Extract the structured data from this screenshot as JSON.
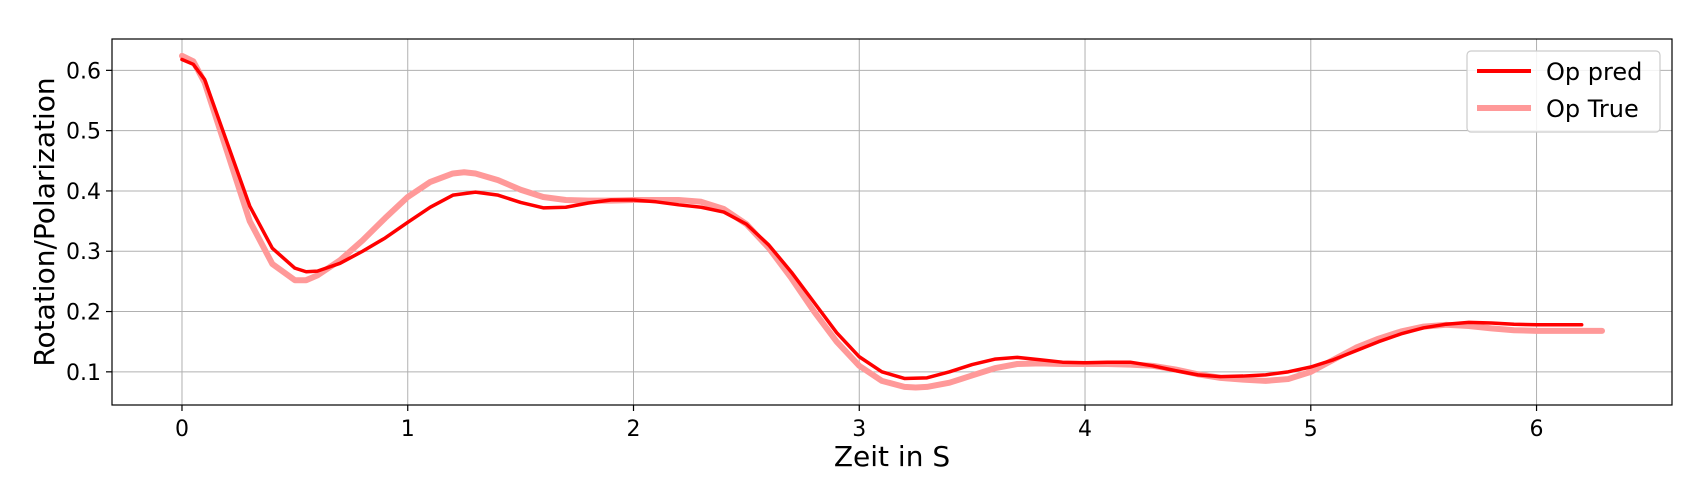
{
  "chart_data": {
    "type": "line",
    "title": "",
    "xlabel": "Zeit in S",
    "ylabel": "Rotation/Polarization",
    "xlim": [
      -0.31,
      6.6
    ],
    "ylim": [
      0.045,
      0.652
    ],
    "xticks": [
      0,
      1,
      2,
      3,
      4,
      5,
      6
    ],
    "yticks": [
      0.1,
      0.2,
      0.3,
      0.4,
      0.5,
      0.6
    ],
    "grid": true,
    "legend_position": "top-right",
    "series": [
      {
        "name": "Op pred",
        "color": "#ff0000",
        "x": [
          0,
          0.05,
          0.1,
          0.2,
          0.3,
          0.4,
          0.5,
          0.55,
          0.6,
          0.7,
          0.8,
          0.9,
          1.0,
          1.1,
          1.2,
          1.3,
          1.4,
          1.5,
          1.6,
          1.7,
          1.8,
          1.9,
          2.0,
          2.1,
          2.2,
          2.3,
          2.4,
          2.5,
          2.6,
          2.7,
          2.8,
          2.9,
          3.0,
          3.1,
          3.2,
          3.3,
          3.4,
          3.5,
          3.6,
          3.7,
          3.8,
          3.9,
          4.0,
          4.1,
          4.2,
          4.3,
          4.4,
          4.5,
          4.6,
          4.7,
          4.8,
          4.9,
          5.0,
          5.1,
          5.2,
          5.3,
          5.4,
          5.5,
          5.6,
          5.7,
          5.8,
          5.9,
          6.0,
          6.1,
          6.2
        ],
        "y": [
          0.618,
          0.61,
          0.585,
          0.48,
          0.375,
          0.305,
          0.272,
          0.266,
          0.267,
          0.28,
          0.3,
          0.322,
          0.348,
          0.373,
          0.393,
          0.398,
          0.393,
          0.381,
          0.372,
          0.373,
          0.38,
          0.385,
          0.385,
          0.382,
          0.377,
          0.373,
          0.365,
          0.345,
          0.31,
          0.265,
          0.215,
          0.165,
          0.125,
          0.1,
          0.089,
          0.09,
          0.1,
          0.112,
          0.121,
          0.124,
          0.12,
          0.116,
          0.115,
          0.116,
          0.116,
          0.11,
          0.102,
          0.095,
          0.092,
          0.093,
          0.095,
          0.1,
          0.108,
          0.12,
          0.135,
          0.15,
          0.163,
          0.173,
          0.179,
          0.182,
          0.181,
          0.179,
          0.178,
          0.178,
          0.178
        ]
      },
      {
        "name": "Op True",
        "color": "#ff9999",
        "x": [
          0,
          0.05,
          0.1,
          0.2,
          0.3,
          0.4,
          0.5,
          0.55,
          0.6,
          0.7,
          0.8,
          0.9,
          1.0,
          1.1,
          1.2,
          1.25,
          1.3,
          1.4,
          1.5,
          1.6,
          1.7,
          1.8,
          1.9,
          2.0,
          2.1,
          2.2,
          2.3,
          2.4,
          2.5,
          2.6,
          2.7,
          2.8,
          2.9,
          3.0,
          3.1,
          3.2,
          3.25,
          3.3,
          3.4,
          3.5,
          3.6,
          3.7,
          3.8,
          3.9,
          4.0,
          4.1,
          4.2,
          4.3,
          4.4,
          4.5,
          4.6,
          4.7,
          4.8,
          4.9,
          5.0,
          5.1,
          5.2,
          5.3,
          5.4,
          5.5,
          5.6,
          5.7,
          5.8,
          5.9,
          6.0,
          6.1,
          6.2,
          6.29
        ],
        "y": [
          0.624,
          0.615,
          0.58,
          0.465,
          0.35,
          0.279,
          0.252,
          0.252,
          0.26,
          0.285,
          0.318,
          0.355,
          0.39,
          0.415,
          0.429,
          0.431,
          0.429,
          0.418,
          0.402,
          0.39,
          0.385,
          0.384,
          0.384,
          0.385,
          0.385,
          0.385,
          0.382,
          0.37,
          0.345,
          0.305,
          0.255,
          0.2,
          0.15,
          0.11,
          0.085,
          0.075,
          0.074,
          0.075,
          0.082,
          0.094,
          0.106,
          0.113,
          0.114,
          0.113,
          0.113,
          0.113,
          0.112,
          0.11,
          0.104,
          0.096,
          0.09,
          0.087,
          0.085,
          0.088,
          0.1,
          0.12,
          0.14,
          0.155,
          0.167,
          0.175,
          0.178,
          0.176,
          0.172,
          0.169,
          0.168,
          0.168,
          0.168,
          0.168
        ]
      }
    ]
  }
}
